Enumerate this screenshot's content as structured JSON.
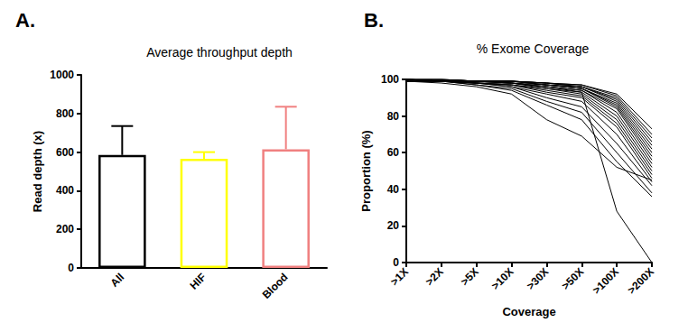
{
  "chart_data": [
    {
      "type": "bar",
      "panel_label": "A.",
      "title": "Average throughput depth",
      "y_label": "Read depth (x)",
      "categories": [
        "All",
        "HIF",
        "Blood"
      ],
      "values": [
        585,
        565,
        615
      ],
      "errors": [
        150,
        35,
        220
      ],
      "colors": [
        "#000000",
        "#ffff00",
        "#f08080"
      ],
      "ylim": [
        0,
        1000
      ],
      "yticks": [
        0,
        200,
        400,
        600,
        800,
        1000
      ],
      "grid": false
    },
    {
      "type": "line",
      "panel_label": "B.",
      "title": "% Exome Coverage",
      "x_label": "Coverage",
      "y_label": "Proportion (%)",
      "categories": [
        ">1X",
        ">2X",
        ">5X",
        ">10X",
        ">30X",
        ">50X",
        ">100X",
        ">200X"
      ],
      "color": "#000000",
      "series": [
        {
          "values": [
            100,
            100,
            99,
            99,
            98,
            97,
            92,
            73
          ]
        },
        {
          "values": [
            100,
            100,
            99,
            99,
            98,
            97,
            91,
            70
          ]
        },
        {
          "values": [
            100,
            100,
            99,
            99,
            98,
            96,
            90,
            68
          ]
        },
        {
          "values": [
            100,
            100,
            99,
            99,
            98,
            96,
            89,
            66
          ]
        },
        {
          "values": [
            100,
            100,
            99,
            99,
            97,
            96,
            88,
            64
          ]
        },
        {
          "values": [
            100,
            99,
            99,
            99,
            97,
            95,
            87,
            62
          ]
        },
        {
          "values": [
            100,
            99,
            99,
            99,
            97,
            95,
            86,
            60
          ]
        },
        {
          "values": [
            100,
            99,
            99,
            98,
            97,
            95,
            85,
            58
          ]
        },
        {
          "values": [
            100,
            99,
            99,
            98,
            96,
            94,
            84,
            56
          ]
        },
        {
          "values": [
            100,
            99,
            99,
            98,
            96,
            94,
            82,
            54
          ]
        },
        {
          "values": [
            100,
            99,
            99,
            98,
            96,
            93,
            80,
            52
          ]
        },
        {
          "values": [
            100,
            99,
            98,
            98,
            95,
            92,
            78,
            50
          ]
        },
        {
          "values": [
            100,
            99,
            98,
            97,
            94,
            91,
            76,
            48
          ]
        },
        {
          "values": [
            100,
            99,
            98,
            97,
            93,
            90,
            74,
            46
          ]
        },
        {
          "values": [
            99,
            99,
            98,
            96,
            92,
            88,
            70,
            44
          ]
        },
        {
          "values": [
            99,
            99,
            98,
            96,
            90,
            85,
            65,
            42
          ]
        },
        {
          "values": [
            99,
            99,
            97,
            95,
            88,
            82,
            60,
            38
          ]
        },
        {
          "values": [
            99,
            99,
            97,
            94,
            86,
            78,
            55,
            36
          ]
        },
        {
          "values": [
            99,
            98,
            96,
            92,
            78,
            69,
            52,
            45
          ]
        },
        {
          "values": [
            99,
            99,
            98,
            97,
            95,
            93,
            28,
            0
          ]
        }
      ],
      "ylim": [
        0,
        100
      ],
      "yticks": [
        0,
        20,
        40,
        60,
        80,
        100
      ],
      "grid": false
    }
  ]
}
